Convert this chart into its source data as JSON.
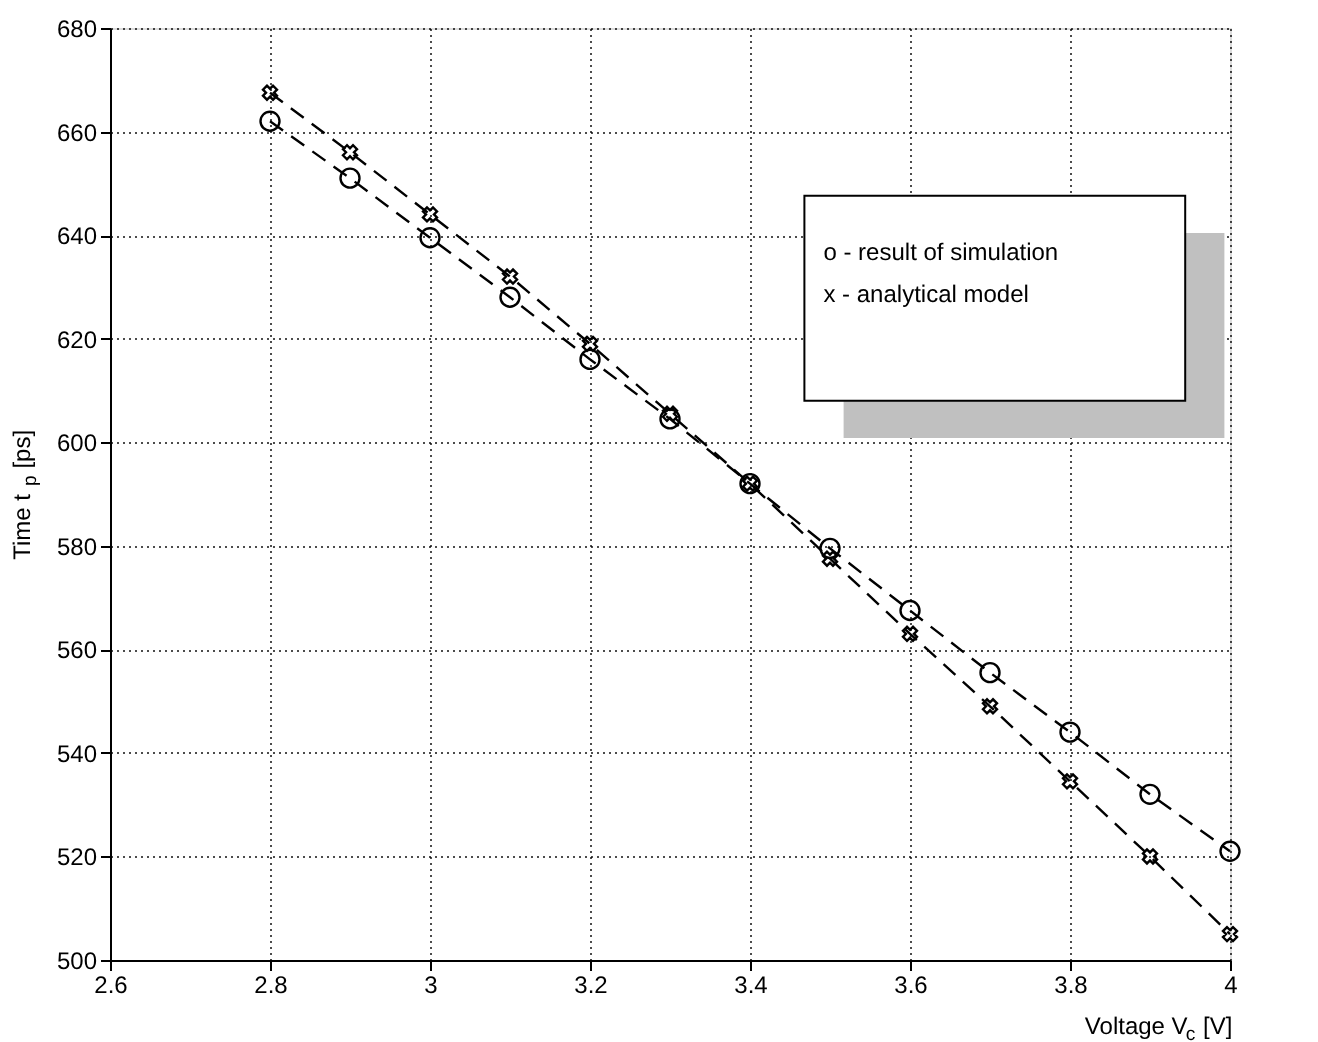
{
  "chart_data": {
    "type": "line",
    "xlabel": "Voltage V$_{c}$ [V]",
    "ylabel": "Time  t$_{p}$ [ps]",
    "x": [
      2.8,
      2.9,
      3.0,
      3.1,
      3.2,
      3.3,
      3.4,
      3.5,
      3.6,
      3.7,
      3.8,
      3.9,
      4.0
    ],
    "series": [
      {
        "color": "#000000",
        "marker": "circle",
        "line_style": "dashed",
        "values": [
          662,
          651,
          639.5,
          628,
          616,
          604.5,
          592,
          579.5,
          567.5,
          555.5,
          544,
          532,
          521
        ]
      },
      {
        "color": "#000000",
        "marker": "cross",
        "line_style": "dashed",
        "values": [
          667.5,
          656,
          644,
          632,
          619,
          605.5,
          592,
          577.5,
          563,
          549,
          534.5,
          520,
          505
        ]
      }
    ],
    "xlim": [
      2.6,
      4.0
    ],
    "xticks": [
      2.6,
      2.8,
      3,
      3.2,
      3.4,
      3.6,
      3.8,
      4
    ],
    "ylim": [
      500,
      680
    ],
    "yticks": [
      500,
      520,
      540,
      560,
      580,
      600,
      620,
      640,
      660,
      680
    ],
    "grid": true,
    "annotations": [
      "o - result of simulation",
      "x - analytical model"
    ]
  }
}
